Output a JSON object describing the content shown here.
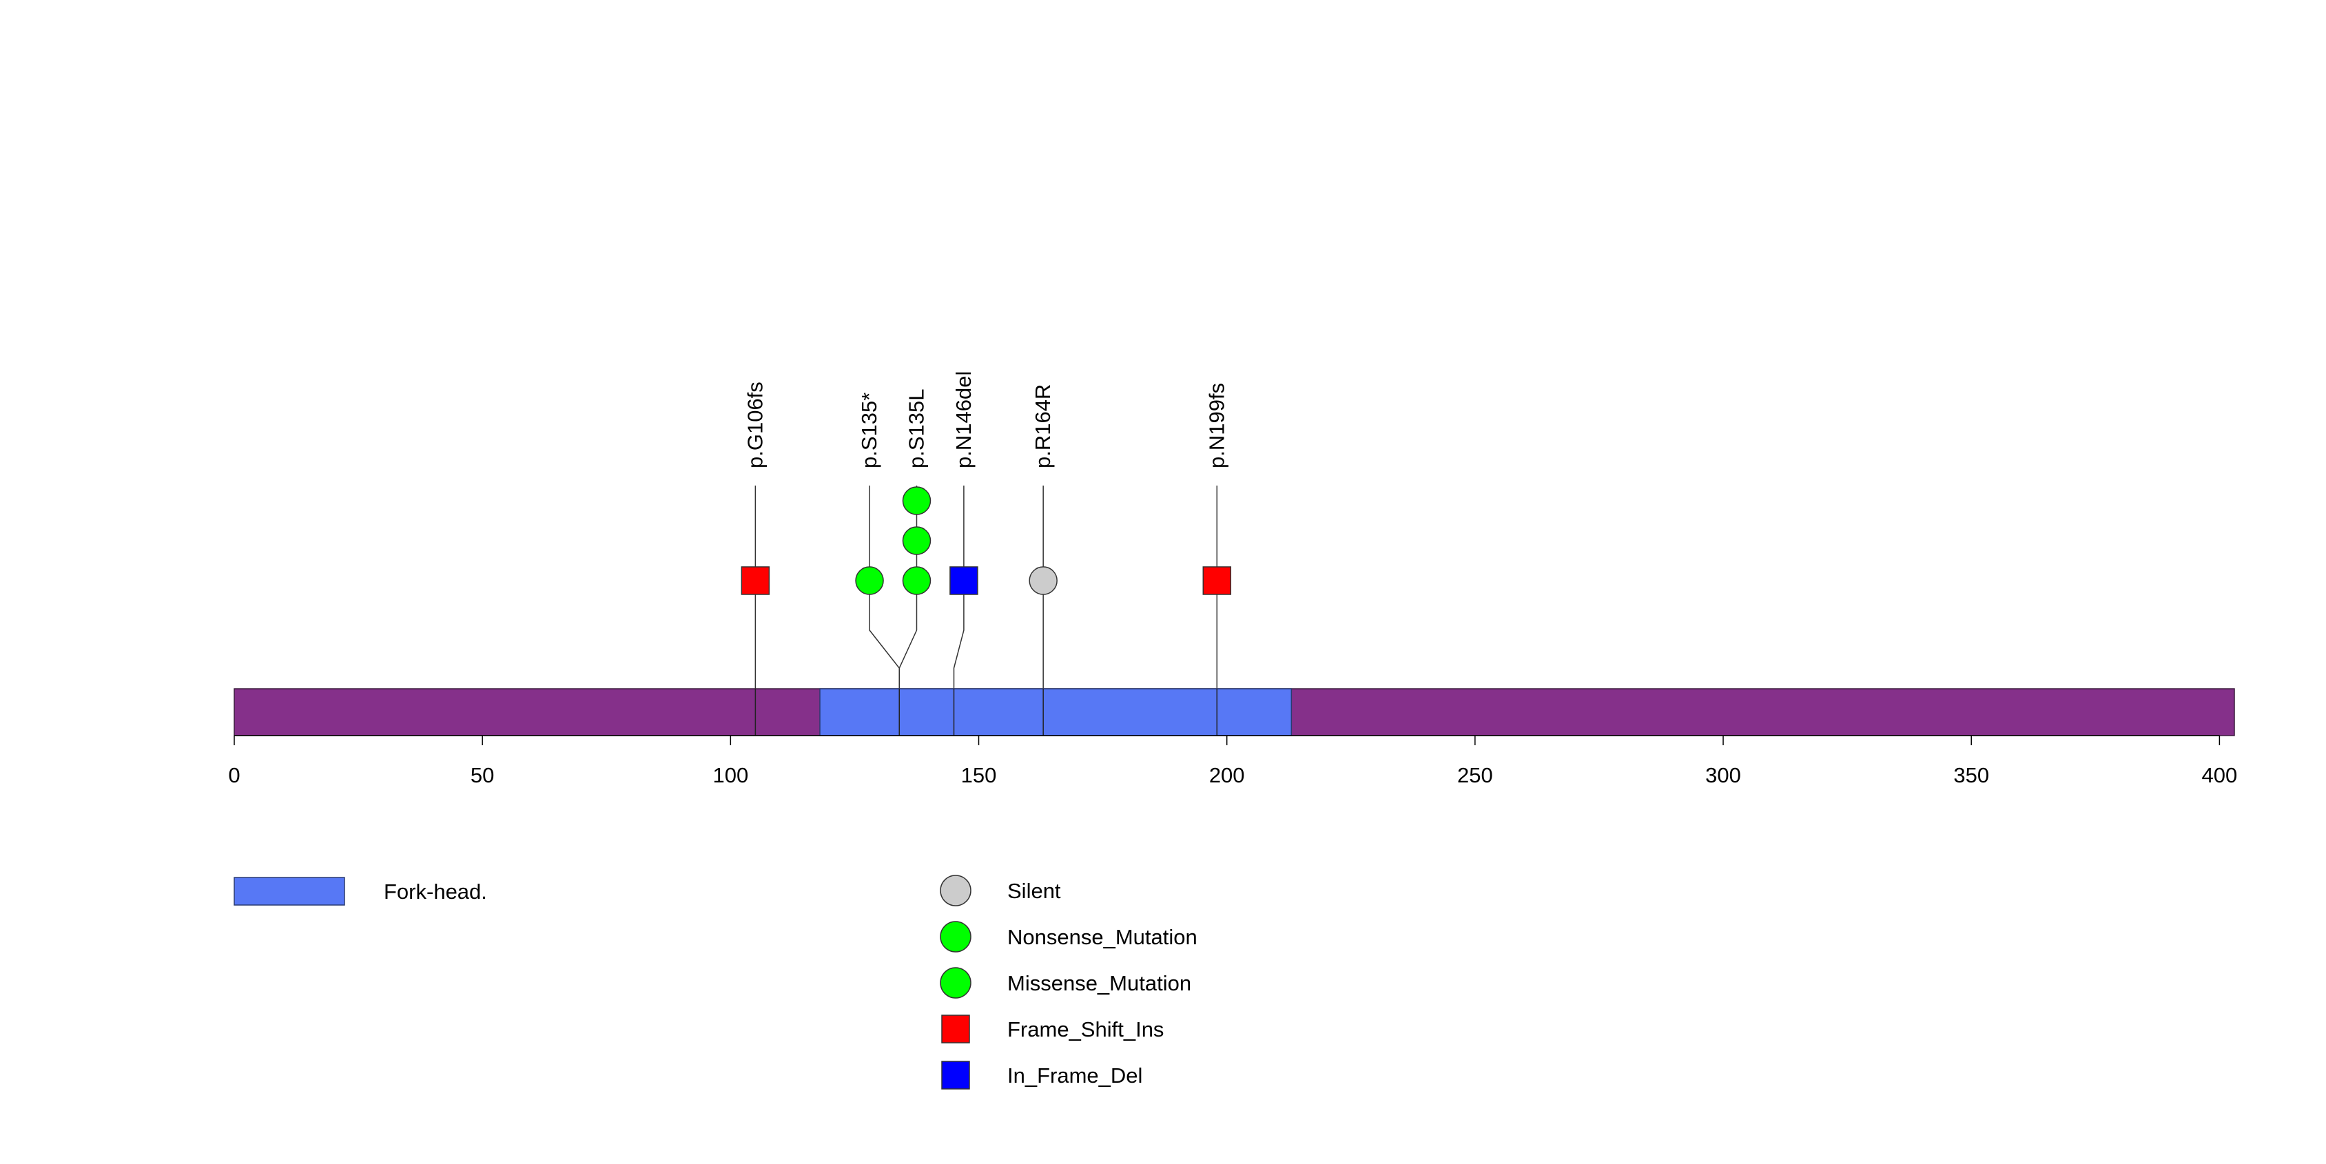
{
  "chart_data": {
    "type": "lollipop",
    "title": "",
    "protein": {
      "length": 403,
      "backbone_color": "#85308A",
      "domains": [
        {
          "name": "Fork-head.",
          "start": 118,
          "end": 213,
          "color": "#5778F5"
        }
      ]
    },
    "x_axis": {
      "min": 0,
      "max": 403,
      "ticks": [
        0,
        50,
        100,
        150,
        200,
        250,
        300,
        350,
        400
      ]
    },
    "mutations": [
      {
        "label": "p.G106fs",
        "position": 105,
        "type": "Frame_Shift_Ins",
        "count": 1,
        "stack_positions": [
          105
        ]
      },
      {
        "label": "p.S135*",
        "position": 134,
        "type": "Nonsense_Mutation",
        "count": 1,
        "stack_positions": [
          128
        ]
      },
      {
        "label": "p.S135L",
        "position": 134,
        "type": "Missense_Mutation",
        "count": 3,
        "stack_positions": [
          137.5
        ]
      },
      {
        "label": "p.N146del",
        "position": 145,
        "type": "In_Frame_Del",
        "count": 1,
        "stack_positions": [
          147
        ]
      },
      {
        "label": "p.R164R",
        "position": 163,
        "type": "Silent",
        "count": 1,
        "stack_positions": [
          163
        ]
      },
      {
        "label": "p.N199fs",
        "position": 198,
        "type": "Frame_Shift_Ins",
        "count": 1,
        "stack_positions": [
          198
        ]
      }
    ],
    "mutation_types": {
      "Silent": {
        "shape": "circle",
        "color": "#CCCCCC"
      },
      "Nonsense_Mutation": {
        "shape": "circle",
        "color": "#00FF00"
      },
      "Missense_Mutation": {
        "shape": "circle",
        "color": "#00FF00"
      },
      "Frame_Shift_Ins": {
        "shape": "square",
        "color": "#FF0000"
      },
      "In_Frame_Del": {
        "shape": "square",
        "color": "#0000FF"
      }
    },
    "legend": {
      "domains": [
        {
          "name": "Fork-head.",
          "color": "#5778F5"
        }
      ],
      "mutation_types": [
        {
          "name": "Silent",
          "shape": "circle",
          "color": "#CCCCCC"
        },
        {
          "name": "Nonsense_Mutation",
          "shape": "circle",
          "color": "#00FF00"
        },
        {
          "name": "Missense_Mutation",
          "shape": "circle",
          "color": "#00FF00"
        },
        {
          "name": "Frame_Shift_Ins",
          "shape": "square",
          "color": "#FF0000"
        },
        {
          "name": "In_Frame_Del",
          "shape": "square",
          "color": "#0000FF"
        }
      ]
    }
  }
}
